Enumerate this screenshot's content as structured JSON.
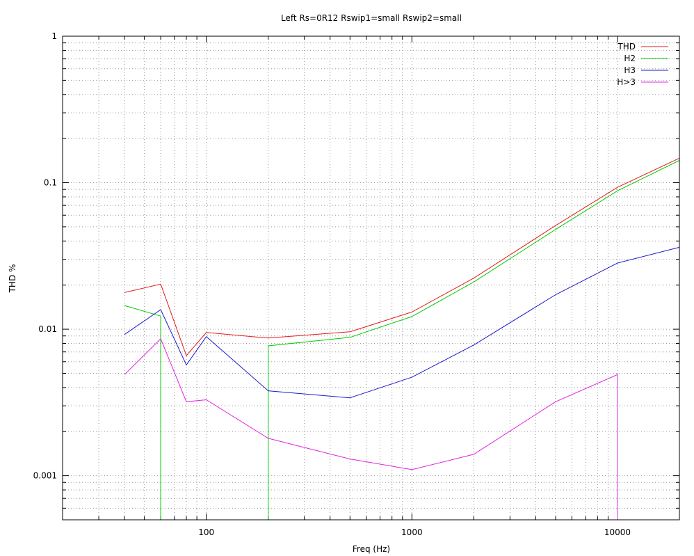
{
  "chart_data": {
    "type": "line",
    "title": "Left Rs=0R12 Rswip1=small  Rswip2=small",
    "xlabel": "Freq (Hz)",
    "ylabel": "THD %",
    "xscale": "log",
    "yscale": "log",
    "xlim": [
      20,
      20000
    ],
    "ylim": [
      0.0005,
      1
    ],
    "x_ticks": [
      {
        "value": 100,
        "label": "100"
      },
      {
        "value": 1000,
        "label": "1000"
      },
      {
        "value": 10000,
        "label": "10000"
      }
    ],
    "y_ticks": [
      {
        "value": 0.001,
        "label": "0.001"
      },
      {
        "value": 0.01,
        "label": "0.01"
      },
      {
        "value": 0.1,
        "label": "0.1"
      },
      {
        "value": 1,
        "label": "1"
      }
    ],
    "grid": true,
    "legend_position": "top-right",
    "series": [
      {
        "name": "THD",
        "color": "#e41a1c",
        "points": [
          [
            40,
            0.0178
          ],
          [
            60,
            0.0203
          ],
          [
            80,
            0.0066
          ],
          [
            100,
            0.0095
          ],
          [
            200,
            0.0087
          ],
          [
            500,
            0.0096
          ],
          [
            1000,
            0.0131
          ],
          [
            2000,
            0.0223
          ],
          [
            5000,
            0.051
          ],
          [
            10000,
            0.093
          ],
          [
            20000,
            0.147
          ]
        ]
      },
      {
        "name": "H2",
        "color": "#00cc00",
        "points": [
          [
            40,
            0.0145
          ],
          [
            60,
            0.0123
          ],
          [
            60,
            0.0005
          ],
          [
            null,
            null
          ],
          [
            200,
            0.0005
          ],
          [
            200,
            0.0077
          ],
          [
            500,
            0.0088
          ],
          [
            1000,
            0.0122
          ],
          [
            2000,
            0.021
          ],
          [
            5000,
            0.048
          ],
          [
            10000,
            0.088
          ],
          [
            20000,
            0.142
          ]
        ]
      },
      {
        "name": "H3",
        "color": "#1a1acc",
        "points": [
          [
            40,
            0.0092
          ],
          [
            60,
            0.0136
          ],
          [
            80,
            0.0057
          ],
          [
            100,
            0.0089
          ],
          [
            200,
            0.0038
          ],
          [
            500,
            0.0034
          ],
          [
            1000,
            0.0047
          ],
          [
            2000,
            0.0078
          ],
          [
            5000,
            0.0172
          ],
          [
            10000,
            0.0283
          ],
          [
            20000,
            0.0362
          ]
        ]
      },
      {
        "name": "H>3",
        "color": "#e020e0",
        "points": [
          [
            40,
            0.0049
          ],
          [
            60,
            0.0086
          ],
          [
            80,
            0.0032
          ],
          [
            100,
            0.0033
          ],
          [
            200,
            0.0018
          ],
          [
            500,
            0.0013
          ],
          [
            1000,
            0.0011
          ],
          [
            2000,
            0.0014
          ],
          [
            5000,
            0.0032
          ],
          [
            10000,
            0.0049
          ],
          [
            10000,
            0.0005
          ]
        ]
      }
    ]
  }
}
